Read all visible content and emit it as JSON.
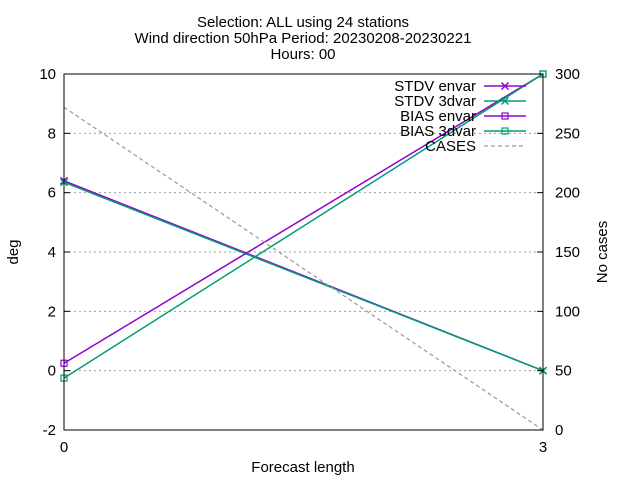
{
  "chart_data": {
    "type": "line",
    "title_lines": [
      "Selection: ALL using    24 stations",
      "Wind direction 50hPa   Period: 20230208-20230221",
      "Hours: 00"
    ],
    "xlabel": "Forecast length",
    "ylabel": "deg",
    "y2label": "No cases",
    "x": [
      0,
      3
    ],
    "xlim": [
      0,
      3
    ],
    "ylim": [
      -2,
      10
    ],
    "y2lim": [
      0,
      300
    ],
    "xticks": [
      0,
      3
    ],
    "yticks": [
      -2,
      0,
      2,
      4,
      6,
      8,
      10
    ],
    "y2ticks": [
      0,
      50,
      100,
      150,
      200,
      250,
      300
    ],
    "grid": true,
    "legend_position": "top-right",
    "series": [
      {
        "name": "STDV envar",
        "axis": "y",
        "color": "#9400d3",
        "marker": "x",
        "dash": false,
        "values": [
          6.4,
          0.0
        ]
      },
      {
        "name": "STDV 3dvar",
        "axis": "y",
        "color": "#009e73",
        "marker": "x",
        "dash": false,
        "values": [
          6.35,
          0.0
        ]
      },
      {
        "name": "BIAS envar",
        "axis": "y",
        "color": "#9400d3",
        "marker": "square",
        "dash": false,
        "values": [
          0.25,
          10.0
        ]
      },
      {
        "name": "BIAS 3dvar",
        "axis": "y",
        "color": "#009e73",
        "marker": "square",
        "dash": false,
        "values": [
          -0.25,
          10.0
        ]
      },
      {
        "name": "CASES",
        "axis": "y2",
        "color": "#999999",
        "marker": "none",
        "dash": true,
        "values": [
          272,
          0
        ]
      }
    ]
  }
}
